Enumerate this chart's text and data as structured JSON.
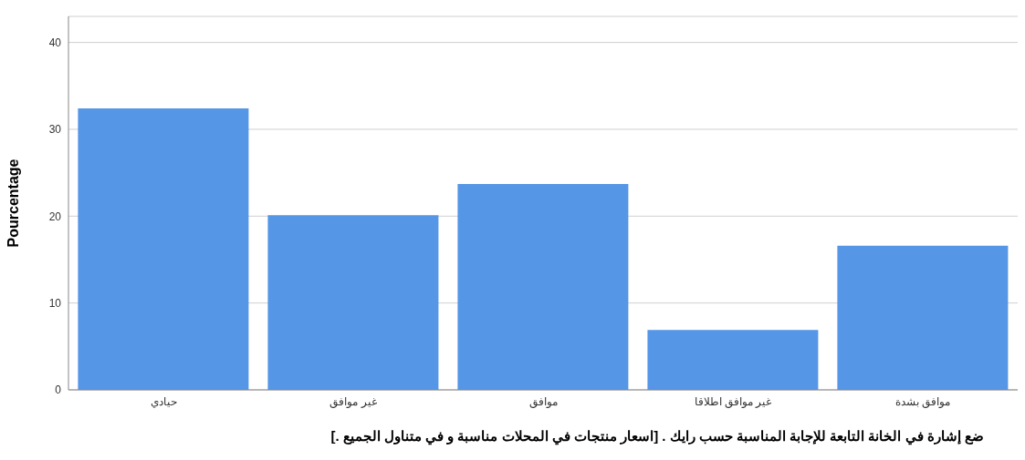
{
  "chart_data": {
    "type": "bar",
    "xlabel": "ضع إشارة في الخانة التابعة للإجابة المناسبة حسب رايك . [اسعار منتجات في المحلات مناسبة و في متناول الجميع .]",
    "ylabel": "Pourcentage",
    "categories": [
      "حيادي",
      "غير موافق",
      "موافق",
      "غير موافق اطلاقا",
      "موافق بشدة"
    ],
    "values": [
      32.4,
      20.1,
      23.7,
      6.9,
      16.6
    ],
    "color": "#5596e6",
    "ylim": [
      0,
      43
    ],
    "yticks": [
      0,
      10,
      20,
      30,
      40
    ],
    "grid": "y"
  }
}
